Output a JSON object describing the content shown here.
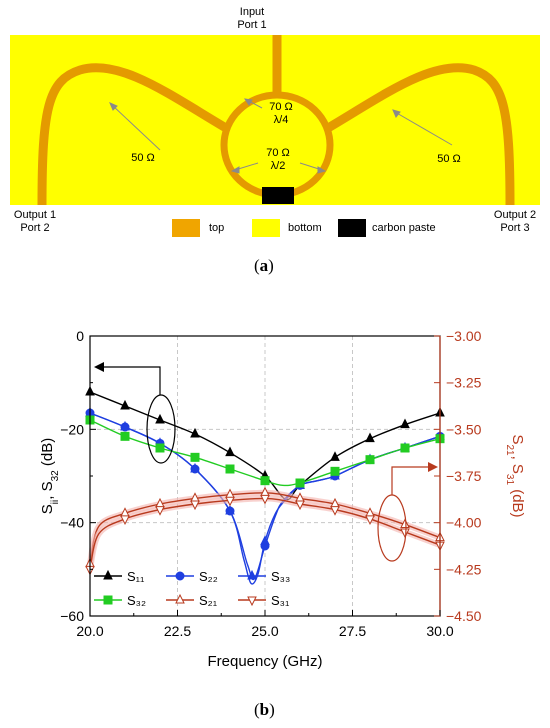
{
  "figure_a": {
    "panel_label": "a",
    "input_label_line1": "Input",
    "input_label_line2": "Port 1",
    "out1_line1": "Output 1",
    "out1_line2": "Port 2",
    "out2_line1": "Output 2",
    "out2_line2": "Port 3",
    "imp_left": "50 Ω",
    "imp_right": "50 Ω",
    "imp_top_1": "70 Ω",
    "imp_top_2": "λ/4",
    "imp_bot_1": "70 Ω",
    "imp_bot_2": "λ/2",
    "legend": [
      {
        "label": "top",
        "color": "#f0a500"
      },
      {
        "label": "bottom",
        "color": "#ffff00"
      },
      {
        "label": "carbon paste",
        "color": "#000000"
      }
    ],
    "colors": {
      "substrate": "#ffff00",
      "trace": "#f0a500",
      "trace_edge": "#d98c00",
      "carbon": "#000000"
    }
  },
  "figure_b": {
    "panel_label": "b"
  },
  "chart_data": {
    "type": "line",
    "xlabel": "Frequency (GHz)",
    "ylabel_left": "Sii, S32 (dB)",
    "ylabel_right": "S21, S31 (dB)",
    "xlim": [
      20.0,
      30.0
    ],
    "ylim_left": [
      -60,
      0
    ],
    "ylim_right": [
      -4.5,
      -3.0
    ],
    "x_ticks": [
      "20.0",
      "22.5",
      "25.0",
      "27.5",
      "30.0"
    ],
    "y_left_ticks": [
      "0",
      "-20",
      "-40",
      "-60"
    ],
    "y_right_ticks": [
      "-3.00",
      "-3.25",
      "-3.50",
      "-3.75",
      "-4.00",
      "-4.25",
      "-4.50"
    ],
    "grid": true,
    "legend_position": "bottom-left",
    "series": [
      {
        "name": "S11",
        "axis": "left",
        "color": "#000000",
        "marker": "triangle-up",
        "x": [
          20.0,
          21.0,
          22.0,
          23.0,
          24.0,
          25.0,
          25.6,
          26.0,
          27.0,
          28.0,
          29.0,
          30.0
        ],
        "y": [
          -12,
          -15,
          -18,
          -21,
          -25,
          -30,
          -35,
          -32,
          -26,
          -22,
          -19,
          -16.5
        ]
      },
      {
        "name": "S22",
        "axis": "left",
        "color": "#1f3fe0",
        "marker": "circle",
        "x": [
          20.0,
          21.0,
          22.0,
          23.0,
          24.0,
          24.5,
          24.7,
          25.0,
          25.3,
          25.5,
          26.0,
          26.5,
          27.0,
          28.0,
          29.0,
          30.0
        ],
        "y": [
          -16.5,
          -19.5,
          -23,
          -28.5,
          -37.5,
          -49,
          -52,
          -45,
          -38.5,
          -35.5,
          -32,
          -31,
          -30,
          -26.5,
          -24,
          -21.5
        ]
      },
      {
        "name": "S33",
        "axis": "left",
        "color": "#1f3fe0",
        "marker": "triangle-up",
        "x": [
          20.0,
          21.0,
          22.0,
          23.0,
          24.0,
          24.4,
          24.6,
          24.8,
          25.0,
          25.3,
          25.6,
          26.0,
          26.5,
          27.0,
          28.0,
          29.0,
          30.0
        ],
        "y": [
          -16.5,
          -19.5,
          -23,
          -28.5,
          -37.5,
          -48,
          -53,
          -51,
          -44,
          -38,
          -35,
          -32,
          -31,
          -30,
          -26.5,
          -24,
          -21.5
        ]
      },
      {
        "name": "S32",
        "axis": "left",
        "color": "#22cc22",
        "marker": "square",
        "x": [
          20.0,
          21.0,
          22.0,
          23.0,
          24.0,
          25.0,
          25.5,
          26.0,
          27.0,
          28.0,
          29.0,
          30.0
        ],
        "y": [
          -18,
          -21.5,
          -24,
          -26,
          -28.5,
          -31,
          -32,
          -31.5,
          -29,
          -26.5,
          -24,
          -22
        ]
      },
      {
        "name": "S21",
        "axis": "right",
        "color": "#b83a1e",
        "marker": "triangle-up",
        "x": [
          20.0,
          20.25,
          21.0,
          22.0,
          23.0,
          24.0,
          25.0,
          25.5,
          26.0,
          27.0,
          28.0,
          29.0,
          30.0
        ],
        "y": [
          -4.22,
          -4.02,
          -3.95,
          -3.9,
          -3.87,
          -3.85,
          -3.84,
          -3.85,
          -3.87,
          -3.9,
          -3.95,
          -4.01,
          -4.08
        ]
      },
      {
        "name": "S31",
        "axis": "right",
        "color": "#b83a1e",
        "marker": "triangle-down",
        "x": [
          20.0,
          20.25,
          21.0,
          22.0,
          23.0,
          24.0,
          25.0,
          25.5,
          26.0,
          27.0,
          28.0,
          29.0,
          30.0
        ],
        "y": [
          -4.25,
          -4.06,
          -3.98,
          -3.93,
          -3.9,
          -3.88,
          -3.87,
          -3.88,
          -3.9,
          -3.93,
          -3.98,
          -4.05,
          -4.12
        ]
      }
    ],
    "legend_labels": {
      "S11": "S₁₁",
      "S22": "S₂₂",
      "S33": "S₃₃",
      "S32": "S₃₂",
      "S21": "S₂₁",
      "S31": "S₃₁"
    }
  }
}
